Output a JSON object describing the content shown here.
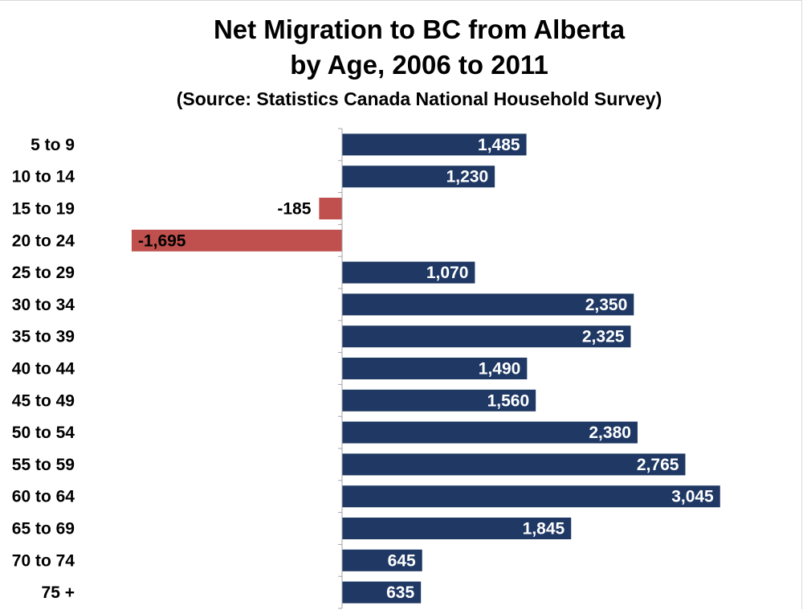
{
  "chart_data": {
    "type": "bar",
    "orientation": "horizontal",
    "title": "Net Migration to BC from Alberta",
    "title_line2": "by Age, 2006 to 2011",
    "subtitle": "(Source: Statistics Canada National Household Survey)",
    "categories": [
      "5 to 9",
      "10 to 14",
      "15 to 19",
      "20 to 24",
      "25 to 29",
      "30 to 34",
      "35 to 39",
      "40 to 44",
      "45 to 49",
      "50 to 54",
      "55 to 59",
      "60 to 64",
      "65 to 69",
      "70 to 74",
      "75 +"
    ],
    "values": [
      1485,
      1230,
      -185,
      -1695,
      1070,
      2350,
      2325,
      1490,
      1560,
      2380,
      2765,
      3045,
      1845,
      645,
      635
    ],
    "value_labels": [
      "1,485",
      "1,230",
      "-185",
      "-1,695",
      "1,070",
      "2,350",
      "2,325",
      "1,490",
      "1,560",
      "2,380",
      "2,765",
      "3,045",
      "1,845",
      "645",
      "635"
    ],
    "xlim": [
      -1695,
      3045
    ],
    "grid": false,
    "legend": "none",
    "colors": {
      "positive": "#1f3864",
      "negative": "#c0504d",
      "axis": "#a6a6a6"
    }
  }
}
